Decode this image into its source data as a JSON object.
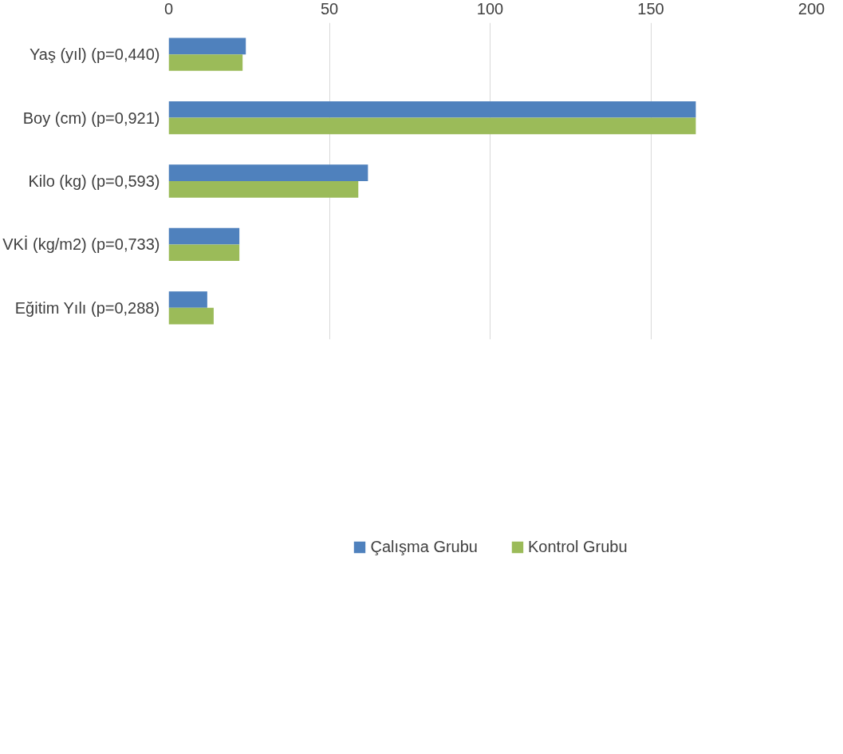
{
  "chart_data": {
    "type": "bar",
    "orientation": "horizontal",
    "categories": [
      "Yaş (yıl) (p=0,440)",
      "Boy (cm) (p=0,921)",
      "Kilo (kg) (p=0,593)",
      "VKİ (kg/m2) (p=0,733)",
      "Eğitim Yılı (p=0,288)"
    ],
    "series": [
      {
        "name": "Çalışma Grubu",
        "color": "#4f81bd",
        "values": [
          24,
          164,
          62,
          22,
          12
        ]
      },
      {
        "name": "Kontrol Grubu",
        "color": "#9bbb59",
        "values": [
          23,
          164,
          59,
          22,
          14
        ]
      }
    ],
    "xlim": [
      0,
      200
    ],
    "xticks": [
      0,
      50,
      100,
      150,
      200
    ],
    "grid": "x",
    "legend": "bottom"
  }
}
